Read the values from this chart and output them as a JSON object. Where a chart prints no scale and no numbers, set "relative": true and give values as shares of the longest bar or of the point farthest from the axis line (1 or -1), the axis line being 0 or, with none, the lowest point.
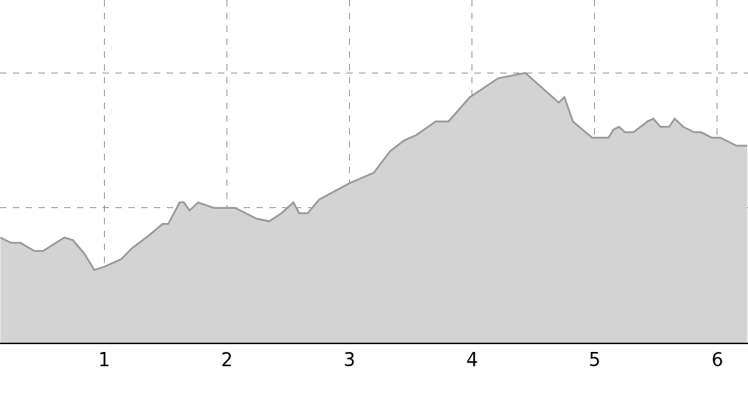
{
  "chart_data": {
    "type": "area",
    "relative": true,
    "grid": true,
    "line_style": "solid",
    "xlim": [
      0.15,
      6.25
    ],
    "xticks": [
      1,
      2,
      3,
      4,
      5,
      6
    ],
    "tick_labels": "x",
    "x": [
      0.153,
      0.24,
      0.316,
      0.432,
      0.501,
      0.571,
      0.675,
      0.745,
      0.838,
      0.919,
      0.994,
      1.139,
      1.226,
      1.371,
      1.476,
      1.522,
      1.615,
      1.65,
      1.696,
      1.766,
      1.893,
      2.067,
      2.241,
      2.346,
      2.445,
      2.543,
      2.589,
      2.659,
      2.752,
      2.833,
      2.995,
      3.198,
      3.332,
      3.448,
      3.547,
      3.703,
      3.808,
      3.981,
      4.213,
      4.434,
      4.706,
      4.753,
      4.822,
      4.979,
      5.113,
      5.153,
      5.199,
      5.246,
      5.316,
      5.431,
      5.478,
      5.536,
      5.606,
      5.652,
      5.722,
      5.809,
      5.867,
      5.954,
      6.023,
      6.157,
      6.244
    ],
    "series": [
      {
        "color": "#d3d3d3",
        "values": [
          0.39,
          0.37,
          0.37,
          0.34,
          0.34,
          0.36,
          0.39,
          0.38,
          0.33,
          0.27,
          0.28,
          0.31,
          0.35,
          0.4,
          0.44,
          0.44,
          0.52,
          0.52,
          0.49,
          0.52,
          0.5,
          0.5,
          0.46,
          0.45,
          0.48,
          0.52,
          0.48,
          0.48,
          0.53,
          0.55,
          0.59,
          0.63,
          0.71,
          0.75,
          0.77,
          0.82,
          0.82,
          0.91,
          0.98,
          1.0,
          0.89,
          0.91,
          0.82,
          0.76,
          0.76,
          0.79,
          0.8,
          0.78,
          0.78,
          0.82,
          0.83,
          0.8,
          0.8,
          0.83,
          0.8,
          0.78,
          0.78,
          0.76,
          0.76,
          0.73,
          0.73
        ]
      }
    ]
  }
}
